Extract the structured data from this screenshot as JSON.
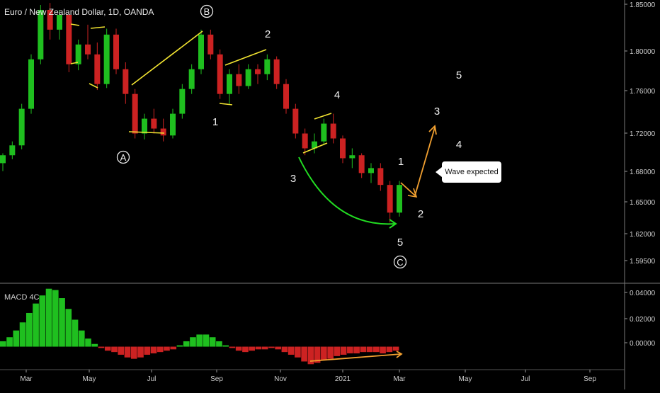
{
  "header": {
    "title": "Euro / New Zealand Dollar, 1D, OANDA"
  },
  "macd": {
    "label": "MACD 4C"
  },
  "callout": {
    "text": "Wave expected"
  },
  "colors": {
    "up": "#1fbf1f",
    "down": "#cc2222",
    "yellow": "#f2e431",
    "orange": "#f2a030",
    "green": "#22dd22"
  },
  "chart_data": [
    {
      "type": "candlestick",
      "title": "Euro / New Zealand Dollar, 1D, OANDA",
      "ylim": [
        1.57,
        1.855
      ],
      "y_ticks": [
        "1.85000",
        "1.80000",
        "1.76000",
        "1.72000",
        "1.68000",
        "1.65000",
        "1.62000",
        "1.59500"
      ],
      "x_ticks": [
        "Mar",
        "May",
        "Jul",
        "Sep",
        "Nov",
        "2021",
        "Mar",
        "May",
        "Jul",
        "Sep"
      ],
      "series": [
        {
          "values": [
            [
              1.69,
              1.7,
              1.682,
              1.698
            ],
            [
              1.698,
              1.712,
              1.694,
              1.708
            ],
            [
              1.708,
              1.75,
              1.704,
              1.745
            ],
            [
              1.745,
              1.8,
              1.74,
              1.795
            ],
            [
              1.795,
              1.85,
              1.79,
              1.845
            ],
            [
              1.845,
              1.852,
              1.815,
              1.825
            ],
            [
              1.825,
              1.845,
              1.815,
              1.84
            ],
            [
              1.84,
              1.842,
              1.782,
              1.79
            ],
            [
              1.79,
              1.815,
              1.784,
              1.81
            ],
            [
              1.81,
              1.83,
              1.795,
              1.8
            ],
            [
              1.8,
              1.812,
              1.764,
              1.77
            ],
            [
              1.77,
              1.826,
              1.766,
              1.82
            ],
            [
              1.82,
              1.826,
              1.78,
              1.785
            ],
            [
              1.785,
              1.792,
              1.75,
              1.76
            ],
            [
              1.76,
              1.765,
              1.715,
              1.72
            ],
            [
              1.72,
              1.74,
              1.714,
              1.735
            ],
            [
              1.735,
              1.745,
              1.72,
              1.725
            ],
            [
              1.725,
              1.735,
              1.712,
              1.718
            ],
            [
              1.718,
              1.745,
              1.715,
              1.74
            ],
            [
              1.74,
              1.77,
              1.735,
              1.765
            ],
            [
              1.765,
              1.79,
              1.76,
              1.785
            ],
            [
              1.785,
              1.825,
              1.78,
              1.82
            ],
            [
              1.82,
              1.825,
              1.795,
              1.8
            ],
            [
              1.8,
              1.805,
              1.755,
              1.76
            ],
            [
              1.76,
              1.785,
              1.75,
              1.78
            ],
            [
              1.78,
              1.79,
              1.76,
              1.768
            ],
            [
              1.768,
              1.79,
              1.765,
              1.785
            ],
            [
              1.785,
              1.79,
              1.77,
              1.78
            ],
            [
              1.78,
              1.8,
              1.774,
              1.795
            ],
            [
              1.795,
              1.798,
              1.765,
              1.77
            ],
            [
              1.77,
              1.775,
              1.74,
              1.745
            ],
            [
              1.745,
              1.75,
              1.715,
              1.72
            ],
            [
              1.72,
              1.725,
              1.698,
              1.705
            ],
            [
              1.705,
              1.72,
              1.7,
              1.712
            ],
            [
              1.712,
              1.735,
              1.708,
              1.73
            ],
            [
              1.73,
              1.74,
              1.71,
              1.715
            ],
            [
              1.715,
              1.718,
              1.69,
              1.695
            ],
            [
              1.695,
              1.705,
              1.685,
              1.698
            ],
            [
              1.698,
              1.7,
              1.675,
              1.68
            ],
            [
              1.68,
              1.69,
              1.67,
              1.685
            ],
            [
              1.685,
              1.69,
              1.662,
              1.668
            ],
            [
              1.668,
              1.672,
              1.63,
              1.64
            ],
            [
              1.64,
              1.672,
              1.636,
              1.668
            ]
          ]
        }
      ]
    },
    {
      "type": "bar",
      "title": "MACD 4C",
      "ylim": [
        -0.016,
        0.046
      ],
      "y_ticks": [
        "0.04000",
        "0.02000",
        "0.00000"
      ],
      "values": [
        0.004,
        0.007,
        0.012,
        0.018,
        0.025,
        0.032,
        0.038,
        0.043,
        0.042,
        0.036,
        0.028,
        0.02,
        0.012,
        0.006,
        0.002,
        -0.001,
        -0.003,
        -0.004,
        -0.006,
        -0.008,
        -0.009,
        -0.008,
        -0.006,
        -0.005,
        -0.004,
        -0.003,
        -0.002,
        0.001,
        0.004,
        0.007,
        0.009,
        0.009,
        0.007,
        0.004,
        0.001,
        -0.001,
        -0.003,
        -0.004,
        -0.003,
        -0.002,
        -0.002,
        -0.001,
        -0.002,
        -0.004,
        -0.006,
        -0.008,
        -0.011,
        -0.013,
        -0.012,
        -0.01,
        -0.009,
        -0.007,
        -0.006,
        -0.005,
        -0.005,
        -0.004,
        -0.004,
        -0.004,
        -0.005,
        -0.004,
        -0.003
      ]
    }
  ],
  "annotations": {
    "waves": [
      {
        "label": "B",
        "circled": true
      },
      {
        "label": "2",
        "circled": false
      },
      {
        "label": "1",
        "circled": false
      },
      {
        "label": "A",
        "circled": true
      },
      {
        "label": "4",
        "circled": false
      },
      {
        "label": "3",
        "circled": false
      },
      {
        "label": "1",
        "circled": false
      },
      {
        "label": "2",
        "circled": false
      },
      {
        "label": "5",
        "circled": false
      },
      {
        "label": "C",
        "circled": true
      },
      {
        "label": "3",
        "circled": false
      },
      {
        "label": "4",
        "circled": false
      },
      {
        "label": "5",
        "circled": false
      }
    ]
  }
}
